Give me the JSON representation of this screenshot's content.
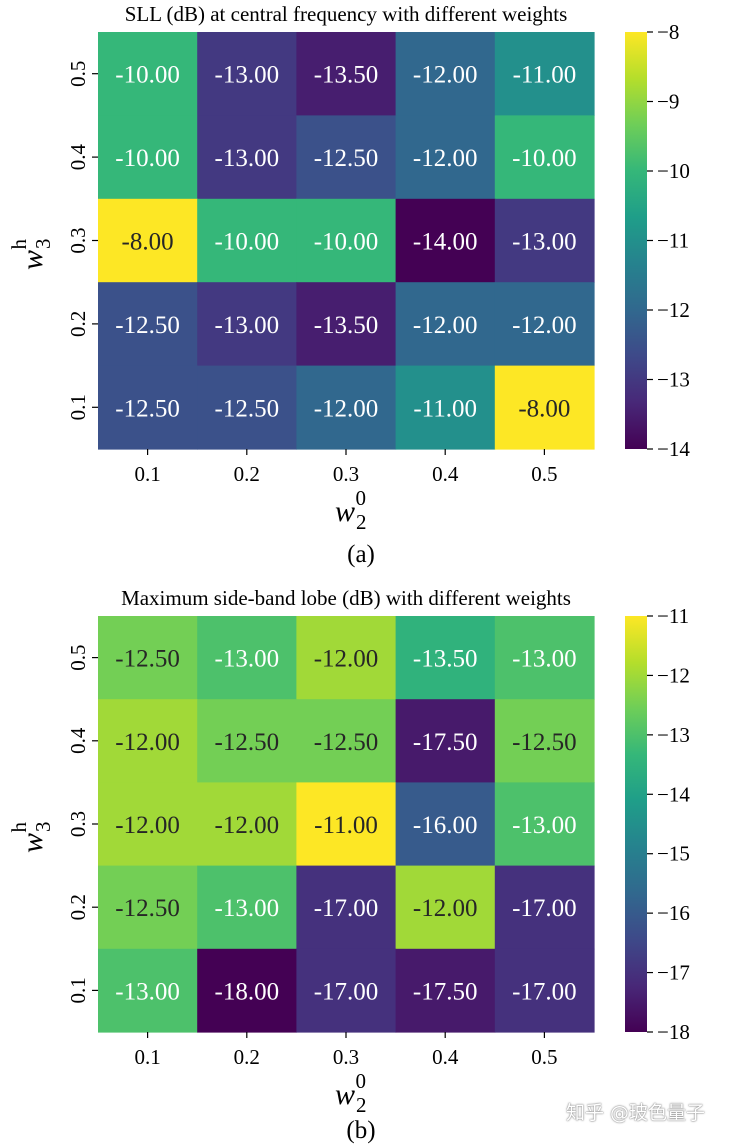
{
  "chart_data": [
    {
      "type": "heatmap",
      "title": "SLL (dB) at central frequency with different weights",
      "xlabel": {
        "base": "w",
        "sub": "2",
        "sup": "0"
      },
      "ylabel": {
        "base": "w",
        "sub": "3",
        "sup": "h"
      },
      "x_ticks": [
        "0.1",
        "0.2",
        "0.3",
        "0.4",
        "0.5"
      ],
      "y_ticks": [
        "0.5",
        "0.4",
        "0.3",
        "0.2",
        "0.1"
      ],
      "values": [
        [
          -10.0,
          -13.0,
          -13.5,
          -12.0,
          -11.0
        ],
        [
          -10.0,
          -13.0,
          -12.5,
          -12.0,
          -10.0
        ],
        [
          -8.0,
          -10.0,
          -10.0,
          -14.0,
          -13.0
        ],
        [
          -12.5,
          -13.0,
          -13.5,
          -12.0,
          -12.0
        ],
        [
          -12.5,
          -12.5,
          -12.0,
          -11.0,
          -8.0
        ]
      ],
      "vmin": -14,
      "vmax": -8,
      "colorbar_ticks": [
        "−8",
        "−9",
        "−10",
        "−11",
        "−12",
        "−13",
        "−14"
      ],
      "colormap": "viridis",
      "caption": "(a)"
    },
    {
      "type": "heatmap",
      "title": "Maximum side-band lobe (dB) with different weights",
      "xlabel": {
        "base": "w",
        "sub": "2",
        "sup": "0"
      },
      "ylabel": {
        "base": "w",
        "sub": "3",
        "sup": "h"
      },
      "x_ticks": [
        "0.1",
        "0.2",
        "0.3",
        "0.4",
        "0.5"
      ],
      "y_ticks": [
        "0.5",
        "0.4",
        "0.3",
        "0.2",
        "0.1"
      ],
      "values": [
        [
          -12.5,
          -13.0,
          -12.0,
          -13.5,
          -13.0
        ],
        [
          -12.0,
          -12.5,
          -12.5,
          -17.5,
          -12.5
        ],
        [
          -12.0,
          -12.0,
          -11.0,
          -16.0,
          -13.0
        ],
        [
          -12.5,
          -13.0,
          -17.0,
          -12.0,
          -17.0
        ],
        [
          -13.0,
          -18.0,
          -17.0,
          -17.5,
          -17.0
        ]
      ],
      "vmin": -18,
      "vmax": -11,
      "colorbar_ticks": [
        "−11",
        "−12",
        "−13",
        "−14",
        "−15",
        "−16",
        "−17",
        "−18"
      ],
      "colormap": "viridis",
      "caption": "(b)"
    }
  ],
  "watermark": "知乎 @玻色量子"
}
